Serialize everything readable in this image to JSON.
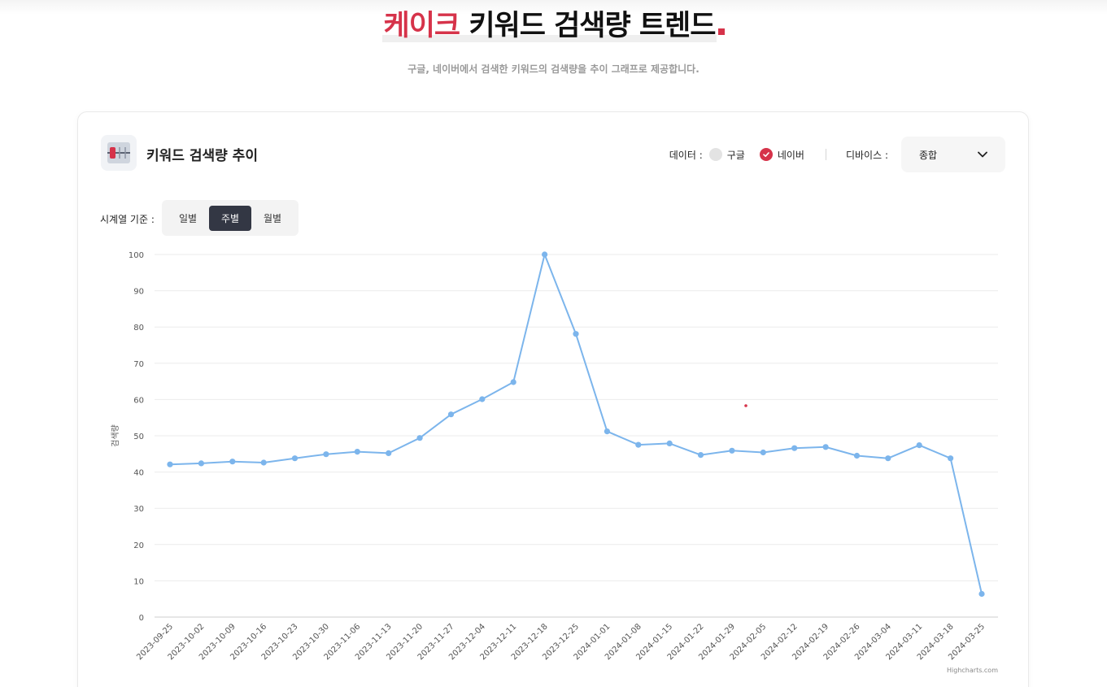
{
  "header": {
    "keyword": "케이크",
    "title_rest": "키워드 검색량 트렌드",
    "subtitle": "구글, 네이버에서 검색한 키워드의 검색량을 추이 그래프로 제공합니다."
  },
  "card": {
    "title": "키워드 검색량 추이",
    "data_label": "데이터 :",
    "data_options": [
      {
        "label": "구글",
        "selected": false
      },
      {
        "label": "네이버",
        "selected": true
      }
    ],
    "device_label": "디바이스 :",
    "device_value": "종합",
    "timeseries_label": "시계열 기준 :",
    "timeseries_options": [
      {
        "label": "일별",
        "active": false
      },
      {
        "label": "주별",
        "active": true
      },
      {
        "label": "월별",
        "active": false
      }
    ]
  },
  "colors": {
    "accent": "#d6334a",
    "series": "#7cb5ec",
    "segment_active": "#333744"
  },
  "chart_data": {
    "type": "line",
    "ylabel": "검색량",
    "ylim": [
      0,
      100
    ],
    "yticks": [
      0,
      10,
      20,
      30,
      40,
      50,
      60,
      70,
      80,
      90,
      100
    ],
    "grid": true,
    "credits": "Highcharts.com",
    "categories": [
      "2023-09-25",
      "2023-10-02",
      "2023-10-09",
      "2023-10-16",
      "2023-10-23",
      "2023-10-30",
      "2023-11-06",
      "2023-11-13",
      "2023-11-20",
      "2023-11-27",
      "2023-12-04",
      "2023-12-11",
      "2023-12-18",
      "2023-12-25",
      "2024-01-01",
      "2024-01-08",
      "2024-01-15",
      "2024-01-22",
      "2024-01-29",
      "2024-02-05",
      "2024-02-12",
      "2024-02-19",
      "2024-02-26",
      "2024-03-04",
      "2024-03-11",
      "2024-03-18",
      "2024-03-25"
    ],
    "values": [
      42.1,
      42.4,
      42.9,
      42.6,
      43.8,
      44.9,
      45.6,
      45.2,
      49.4,
      55.9,
      60.1,
      64.8,
      100,
      78.1,
      51.2,
      47.5,
      47.9,
      44.7,
      45.9,
      45.4,
      46.6,
      46.9,
      44.5,
      43.8,
      47.4,
      43.8,
      6.4
    ]
  }
}
